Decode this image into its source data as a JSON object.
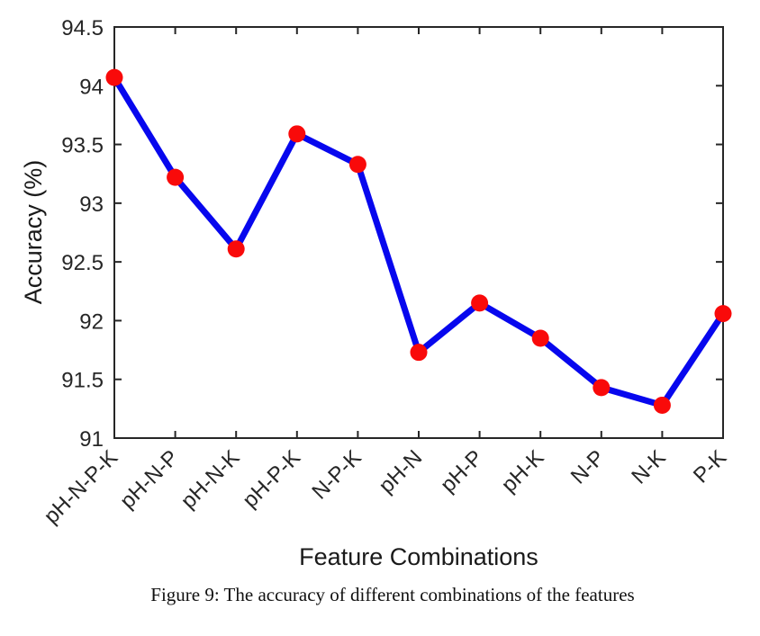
{
  "chart_data": {
    "type": "line",
    "categories": [
      "pH-N-P-K",
      "pH-N-P",
      "pH-N-K",
      "pH-P-K",
      "N-P-K",
      "pH-N",
      "pH-P",
      "pH-K",
      "N-P",
      "N-K",
      "P-K"
    ],
    "values": [
      94.07,
      93.22,
      92.61,
      93.59,
      93.33,
      91.73,
      92.15,
      91.85,
      91.43,
      91.28,
      92.06
    ],
    "title": "",
    "xlabel": "Feature Combinations",
    "ylabel": "Accuracy (%)",
    "ylim": [
      91,
      94.5
    ],
    "y_ticks": [
      91,
      91.5,
      92,
      92.5,
      93,
      93.5,
      94,
      94.5
    ],
    "grid": false,
    "legend": "none",
    "line_color": "#0707ee",
    "marker_color": "#f90a0a",
    "axis_color": "#262626",
    "caption": "Figure 9: The accuracy of different combinations of the features"
  }
}
